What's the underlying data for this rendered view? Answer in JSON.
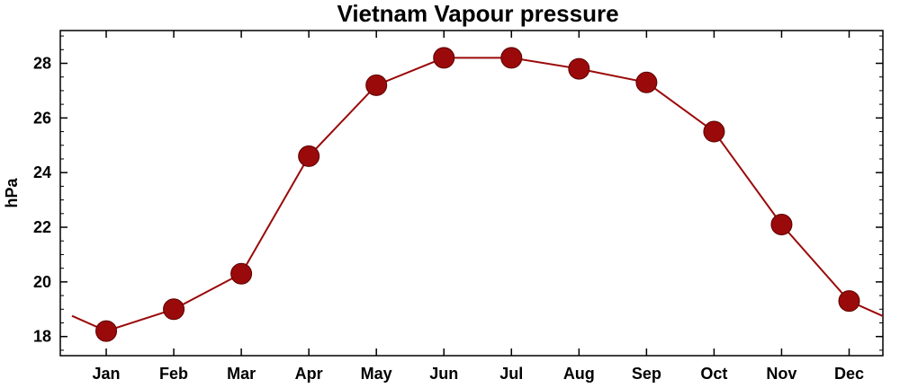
{
  "chart_data": {
    "type": "line",
    "title": "Vietnam Vapour pressure",
    "ylabel": "hPa",
    "xlabel": "",
    "categories": [
      "Jan",
      "Feb",
      "Mar",
      "Apr",
      "May",
      "Jun",
      "Jul",
      "Aug",
      "Sep",
      "Oct",
      "Nov",
      "Dec"
    ],
    "values": [
      18.2,
      19.0,
      20.3,
      24.6,
      27.2,
      28.2,
      28.2,
      27.8,
      27.3,
      25.5,
      22.1,
      19.3
    ],
    "ylim": [
      17.3,
      29.2
    ],
    "yticks": [
      18,
      20,
      22,
      24,
      26,
      28
    ],
    "grid": false,
    "colors": {
      "series": "#9b0a0a",
      "marker": "#9b0a0a"
    }
  }
}
